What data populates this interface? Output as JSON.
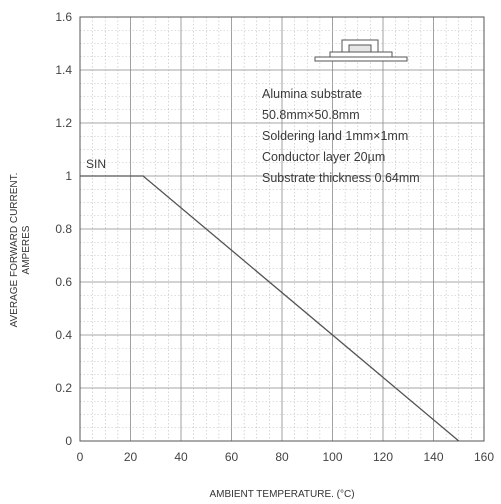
{
  "chart_data": {
    "type": "line",
    "xlabel": "AMBIENT TEMPERATURE. (°C)",
    "ylabel_line1": "AVERAGE FORWARD CURRENT.",
    "ylabel_line2": "AMPERES",
    "xlim": [
      0,
      160
    ],
    "ylim": [
      0,
      1.6
    ],
    "xticks": [
      "0",
      "20",
      "40",
      "60",
      "80",
      "100",
      "120",
      "140",
      "160"
    ],
    "yticks": [
      "0",
      "0.2",
      "0.4",
      "0.6",
      "0.8",
      "1",
      "1.2",
      "1.4",
      "1.6"
    ],
    "grid": true,
    "series": [
      {
        "name": "SIN",
        "x": [
          0,
          25,
          150
        ],
        "y": [
          1,
          1,
          0
        ]
      }
    ],
    "annotation_lines": [
      "Alumina substrate",
      "50.8mm×50.8mm",
      "Soldering land 1mm×1mm",
      "Conductor layer 20µm",
      "Substrate thickness 0.64mm"
    ],
    "inset_icon": "package-on-substrate-icon"
  },
  "colors": {
    "grid_major": "#8a8a8a",
    "grid_minor": "#bdbdbd",
    "curve": "#555555",
    "frame": "#555555"
  }
}
